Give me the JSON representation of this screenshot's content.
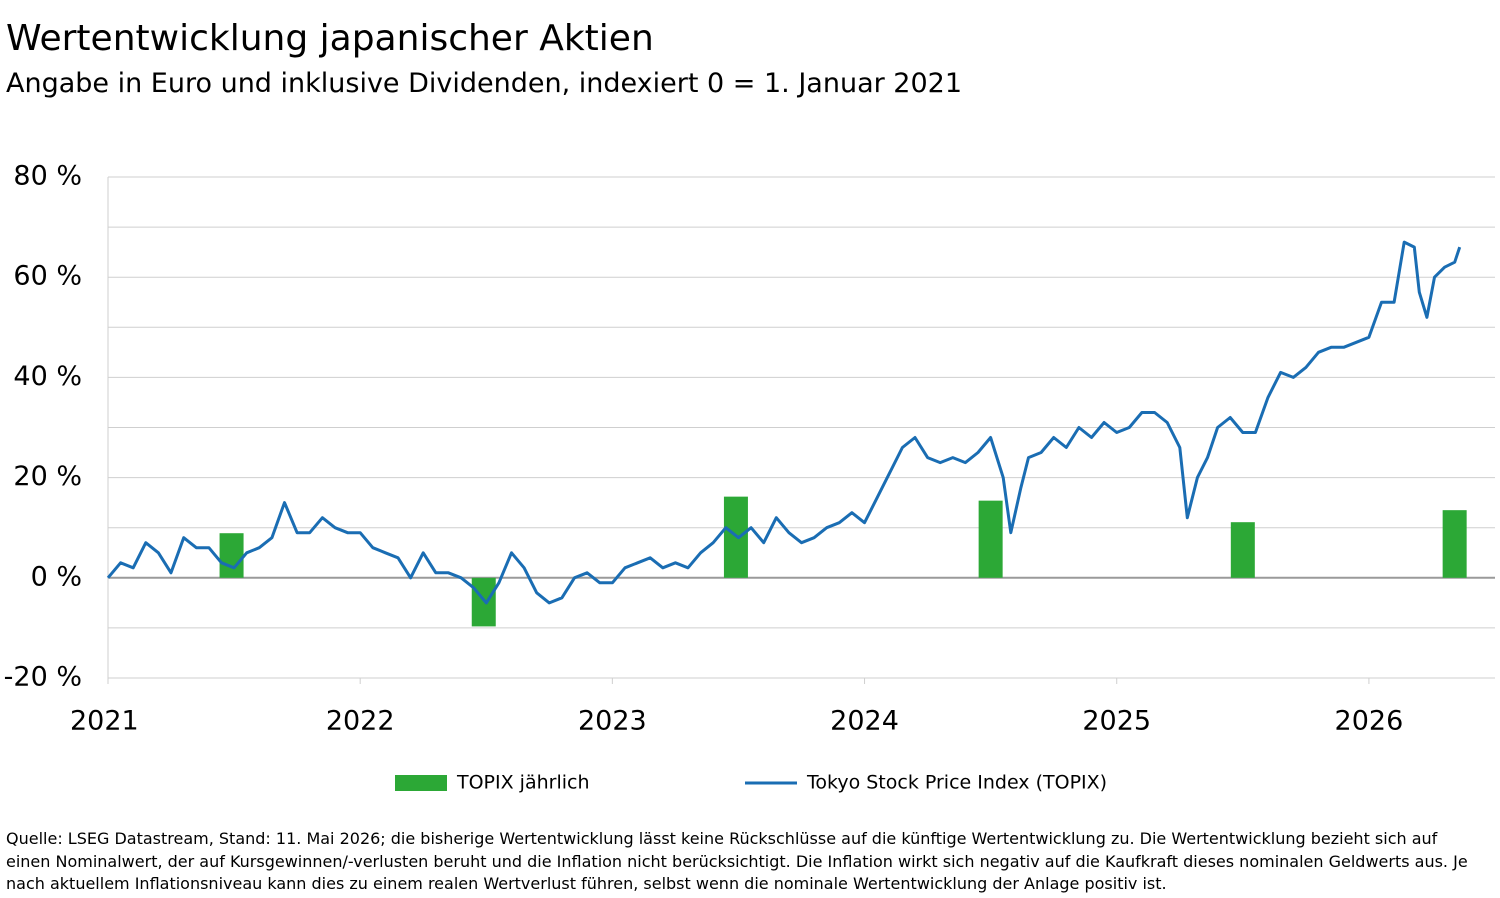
{
  "title": "Wertentwicklung japanischer Aktien",
  "subtitle": "Angabe in Euro und inklusive Dividenden, indexiert 0 = 1. Januar 2021",
  "footnote": "Quelle: LSEG Datastream, Stand: 11. Mai 2026; die bisherige Wertentwicklung lässt keine Rückschlüsse auf die künftige Wertentwicklung zu. Die Wertentwicklung bezieht sich auf einen Nominalwert, der auf Kursgewinnen/-verlusten beruht und die Inflation nicht berücksichtigt. Die Inflation wirkt sich negativ auf die Kaufkraft dieses nominalen Geldwerts aus. Je nach aktuellem Inflationsniveau kann dies zu einem realen Wertverlust führen, selbst wenn die nominale Wertentwicklung der Anlage positiv ist.",
  "chart_data": {
    "type": "combo",
    "xlim": [
      2021,
      2026.5
    ],
    "xticks": [
      2021,
      2022,
      2023,
      2024,
      2025,
      2026
    ],
    "ylim": [
      -20,
      80
    ],
    "yticks": [
      {
        "value": -20,
        "label": "-20 %"
      },
      {
        "value": 0,
        "label": "0 %"
      },
      {
        "value": 20,
        "label": "20 %"
      },
      {
        "value": 40,
        "label": "40 %"
      },
      {
        "value": 60,
        "label": "60 %"
      },
      {
        "value": 80,
        "label": "80 %"
      }
    ],
    "ygrid_minor": [
      -10,
      10,
      30,
      50,
      70
    ],
    "grid": true,
    "legend": "bottom",
    "series": [
      {
        "name": "TOPIX jährlich",
        "type": "bar",
        "color": "#2ca836",
        "x": [
          2021.49,
          2022.49,
          2023.49,
          2024.5,
          2025.5,
          2026.34
        ],
        "values": [
          8.9,
          -9.7,
          16.2,
          15.4,
          11.1,
          13.5
        ]
      },
      {
        "name": "Tokyo Stock Price Index (TOPIX)",
        "type": "line",
        "color": "#1a6db3",
        "x": [
          2021.0,
          2021.05,
          2021.1,
          2021.15,
          2021.2,
          2021.25,
          2021.3,
          2021.35,
          2021.4,
          2021.45,
          2021.5,
          2021.55,
          2021.6,
          2021.65,
          2021.7,
          2021.75,
          2021.8,
          2021.85,
          2021.9,
          2021.95,
          2022.0,
          2022.05,
          2022.1,
          2022.15,
          2022.2,
          2022.25,
          2022.3,
          2022.35,
          2022.4,
          2022.45,
          2022.5,
          2022.55,
          2022.6,
          2022.65,
          2022.7,
          2022.75,
          2022.8,
          2022.85,
          2022.9,
          2022.95,
          2023.0,
          2023.05,
          2023.1,
          2023.15,
          2023.2,
          2023.25,
          2023.3,
          2023.35,
          2023.4,
          2023.45,
          2023.5,
          2023.55,
          2023.6,
          2023.65,
          2023.7,
          2023.75,
          2023.8,
          2023.85,
          2023.9,
          2023.95,
          2024.0,
          2024.05,
          2024.1,
          2024.15,
          2024.2,
          2024.25,
          2024.3,
          2024.35,
          2024.4,
          2024.45,
          2024.5,
          2024.55,
          2024.58,
          2024.62,
          2024.65,
          2024.7,
          2024.75,
          2024.8,
          2024.85,
          2024.9,
          2024.95,
          2025.0,
          2025.05,
          2025.1,
          2025.15,
          2025.2,
          2025.25,
          2025.28,
          2025.32,
          2025.36,
          2025.4,
          2025.45,
          2025.5,
          2025.55,
          2025.6,
          2025.65,
          2025.7,
          2025.75,
          2025.8,
          2025.85,
          2025.9,
          2025.95,
          2026.0,
          2026.05,
          2026.1,
          2026.14,
          2026.18,
          2026.2,
          2026.23,
          2026.26,
          2026.3,
          2026.34,
          2026.36
        ],
        "values": [
          0,
          3,
          2,
          7,
          5,
          1,
          8,
          6,
          6,
          3,
          2,
          5,
          6,
          8,
          15,
          9,
          9,
          12,
          10,
          9,
          9,
          6,
          5,
          4,
          0,
          5,
          1,
          1,
          0,
          -2,
          -5,
          -1,
          5,
          2,
          -3,
          -5,
          -4,
          0,
          1,
          -1,
          -1,
          2,
          3,
          4,
          2,
          3,
          2,
          5,
          7,
          10,
          8,
          10,
          7,
          12,
          9,
          7,
          8,
          10,
          11,
          13,
          11,
          16,
          21,
          26,
          28,
          24,
          23,
          24,
          23,
          25,
          28,
          20,
          9,
          18,
          24,
          25,
          28,
          26,
          30,
          28,
          31,
          29,
          30,
          33,
          33,
          31,
          26,
          12,
          20,
          24,
          30,
          32,
          29,
          29,
          36,
          41,
          40,
          42,
          45,
          46,
          46,
          47,
          48,
          55,
          55,
          67,
          66,
          57,
          52,
          60,
          62,
          63,
          66
        ]
      }
    ]
  }
}
